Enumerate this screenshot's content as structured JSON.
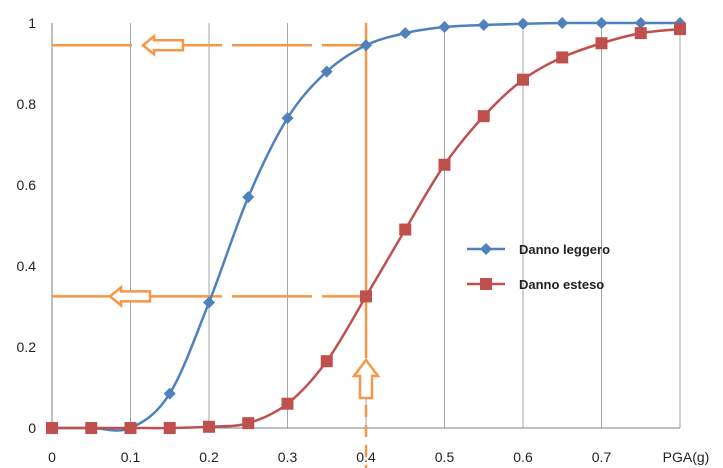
{
  "chart_data": {
    "type": "line",
    "xlabel": "PGA(g)",
    "ylabel": "",
    "xlim": [
      0,
      0.8
    ],
    "ylim": [
      0,
      1
    ],
    "x_ticks": [
      "0",
      "0.1",
      "0.2",
      "0.3",
      "0.4",
      "0.5",
      "0.6",
      "0.7"
    ],
    "y_ticks": [
      "0",
      "0.2",
      "0.4",
      "0.6",
      "0.8",
      "1"
    ],
    "grid": "vertical",
    "legend": "right",
    "series": [
      {
        "name": "Danno leggero",
        "color": "#4f81bd",
        "marker": "diamond",
        "x": [
          0,
          0.05,
          0.1,
          0.15,
          0.2,
          0.25,
          0.3,
          0.35,
          0.4,
          0.45,
          0.5,
          0.55,
          0.6,
          0.65,
          0.7,
          0.75,
          0.8
        ],
        "y": [
          0,
          0,
          0,
          0.085,
          0.31,
          0.57,
          0.765,
          0.88,
          0.945,
          0.975,
          0.99,
          0.995,
          0.998,
          1.0,
          1.0,
          1.0,
          1.0
        ]
      },
      {
        "name": "Danno esteso",
        "color": "#c0504d",
        "marker": "square",
        "x": [
          0,
          0.05,
          0.1,
          0.15,
          0.2,
          0.25,
          0.3,
          0.35,
          0.4,
          0.45,
          0.5,
          0.55,
          0.6,
          0.65,
          0.7,
          0.75,
          0.8
        ],
        "y": [
          0,
          0,
          0,
          0,
          0.003,
          0.012,
          0.06,
          0.165,
          0.325,
          0.49,
          0.65,
          0.77,
          0.86,
          0.915,
          0.95,
          0.975,
          0.985
        ]
      }
    ],
    "annotations": {
      "color": "#f79646",
      "vertical_line_x": 0.4,
      "horizontal_line_y_1": 0.945,
      "horizontal_line_y_2": 0.325
    }
  }
}
